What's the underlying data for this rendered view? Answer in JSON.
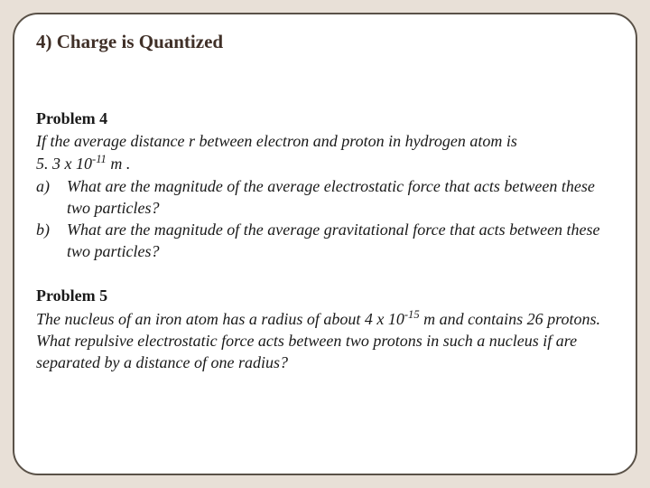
{
  "title": "4) Charge is Quantized",
  "problem4": {
    "heading": "Problem 4",
    "intro_line1": "If the average distance  r  between electron and proton in hydrogen atom is",
    "intro_line2_pre": "5. 3 x 10",
    "intro_line2_exp": "-11",
    "intro_line2_post": " m .",
    "a_marker": "a)",
    "a_text": "What are the magnitude of the average electrostatic force that acts between these two particles?",
    "b_marker": "b)",
    "b_text": "What are the magnitude of the average gravitational force that acts between these two particles?"
  },
  "problem5": {
    "heading": "Problem 5",
    "line1_pre": "The nucleus of an iron atom has a radius of about 4 x 10",
    "line1_exp": "-15",
    "line1_post": " m and contains 26 protons. What repulsive electrostatic force acts between two protons in such a nucleus if are separated by a distance of one radius?"
  },
  "colors": {
    "background": "#e8e0d7",
    "slide_bg": "#ffffff",
    "border": "#5a5248",
    "title_color": "#403028",
    "text_color": "#1a1a1a"
  },
  "typography": {
    "title_fontsize": 21,
    "body_fontsize": 18,
    "font_family": "Georgia"
  }
}
